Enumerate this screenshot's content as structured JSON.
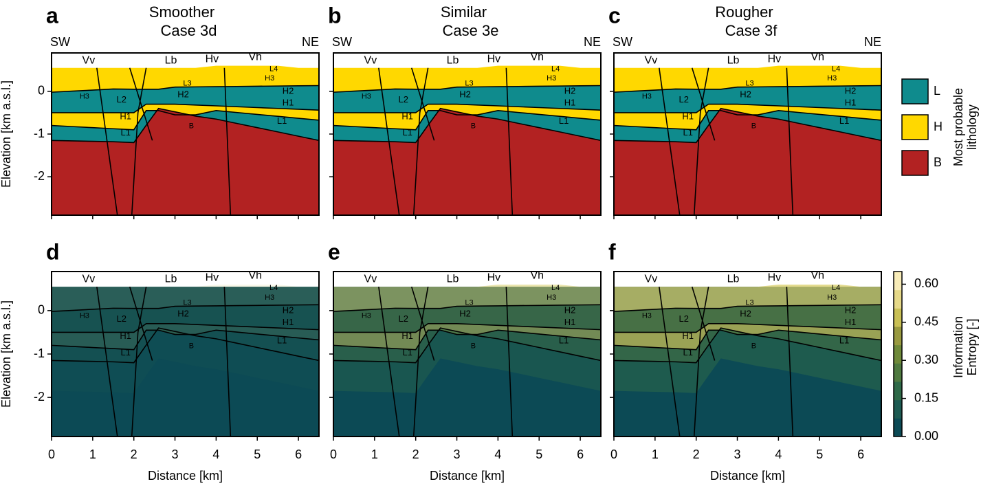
{
  "chart_data": [
    {
      "type": "lithology",
      "panel_label": "a",
      "title": "Smoother",
      "subtitle": "Case 3d",
      "directions": [
        "SW",
        "NE"
      ],
      "annotations": [
        "Vv",
        "Lb",
        "Hv",
        "Vh",
        "H3",
        "L2",
        "H1",
        "L1",
        "B",
        "L3",
        "H2",
        "L4",
        "H3",
        "H2",
        "H1",
        "L1"
      ],
      "ylabel": "Elevation [km a.s.l.]",
      "xlim": [
        0,
        6.5
      ],
      "ylim": [
        -2.9,
        0.9
      ],
      "xticks": [
        0,
        1,
        2,
        3,
        4,
        5,
        6
      ],
      "yticks": [
        -2,
        -1,
        0
      ],
      "show_xtick_labels": false,
      "show_ytick_labels": true
    },
    {
      "type": "lithology",
      "panel_label": "b",
      "title": "Similar",
      "subtitle": "Case 3e",
      "directions": [
        "SW",
        "NE"
      ],
      "annotations": [
        "Vv",
        "Lb",
        "Hv",
        "Vh",
        "H3",
        "L2",
        "H1",
        "L1",
        "B",
        "L3",
        "H2",
        "L4",
        "H3",
        "H2",
        "H1",
        "L1"
      ],
      "xlim": [
        0,
        6.5
      ],
      "ylim": [
        -2.9,
        0.9
      ],
      "xticks": [
        0,
        1,
        2,
        3,
        4,
        5,
        6
      ],
      "yticks": [
        -2,
        -1,
        0
      ],
      "show_xtick_labels": false,
      "show_ytick_labels": false
    },
    {
      "type": "lithology",
      "panel_label": "c",
      "title": "Rougher",
      "subtitle": "Case 3f",
      "directions": [
        "SW",
        "NE"
      ],
      "annotations": [
        "Vv",
        "Lb",
        "Hv",
        "Vh",
        "H3",
        "L2",
        "H1",
        "L1",
        "B",
        "L3",
        "H2",
        "L4",
        "H3",
        "H2",
        "H1",
        "L1"
      ],
      "xlim": [
        0,
        6.5
      ],
      "ylim": [
        -2.9,
        0.9
      ],
      "xticks": [
        0,
        1,
        2,
        3,
        4,
        5,
        6
      ],
      "yticks": [
        -2,
        -1,
        0
      ],
      "show_xtick_labels": false,
      "show_ytick_labels": false,
      "legend": {
        "title": [
          "Most probable",
          "lithology"
        ],
        "entries": [
          {
            "name": "L",
            "color": "#0f8b8d"
          },
          {
            "name": "H",
            "color": "#ffd800"
          },
          {
            "name": "B",
            "color": "#b22222"
          }
        ]
      }
    },
    {
      "type": "entropy",
      "panel_label": "d",
      "annotations": [
        "Vv",
        "Lb",
        "Hv",
        "Vh",
        "H3",
        "L2",
        "H1",
        "L1",
        "B",
        "L3",
        "H2",
        "L4",
        "H3",
        "H2",
        "H1",
        "L1"
      ],
      "ylabel": "Elevation [km a.s.l.]",
      "xlabel": "Distance [km]",
      "xlim": [
        0,
        6.5
      ],
      "ylim": [
        -2.9,
        0.9
      ],
      "xticks": [
        0,
        1,
        2,
        3,
        4,
        5,
        6
      ],
      "yticks": [
        -2,
        -1,
        0
      ],
      "show_xtick_labels": true,
      "show_ytick_labels": true
    },
    {
      "type": "entropy",
      "panel_label": "e",
      "annotations": [
        "Vv",
        "Lb",
        "Hv",
        "Vh",
        "H3",
        "L2",
        "H1",
        "L1",
        "B",
        "L3",
        "H2",
        "L4",
        "H3",
        "H2",
        "H1",
        "L1"
      ],
      "xlabel": "Distance [km]",
      "xlim": [
        0,
        6.5
      ],
      "ylim": [
        -2.9,
        0.9
      ],
      "xticks": [
        0,
        1,
        2,
        3,
        4,
        5,
        6
      ],
      "yticks": [
        -2,
        -1,
        0
      ],
      "show_xtick_labels": true,
      "show_ytick_labels": false
    },
    {
      "type": "entropy",
      "panel_label": "f",
      "annotations": [
        "Vv",
        "Lb",
        "Hv",
        "Vh",
        "H3",
        "L2",
        "H1",
        "L1",
        "B",
        "L3",
        "H2",
        "L4",
        "H3",
        "H2",
        "H1",
        "L1"
      ],
      "xlabel": "Distance [km]",
      "xlim": [
        0,
        6.5
      ],
      "ylim": [
        -2.9,
        0.9
      ],
      "xticks": [
        0,
        1,
        2,
        3,
        4,
        5,
        6
      ],
      "yticks": [
        -2,
        -1,
        0
      ],
      "show_xtick_labels": true,
      "show_ytick_labels": false,
      "colorbar": {
        "label": [
          "Information",
          "Entropy [-]"
        ],
        "lim": [
          0,
          0.65
        ],
        "ticks": [
          {
            "value": 0,
            "label": "0.00"
          },
          {
            "value": 0.15,
            "label": "0.15"
          },
          {
            "value": 0.3,
            "label": "0.30"
          },
          {
            "value": 0.45,
            "label": "0.45"
          },
          {
            "value": 0.6,
            "label": "0.60"
          }
        ]
      }
    }
  ]
}
